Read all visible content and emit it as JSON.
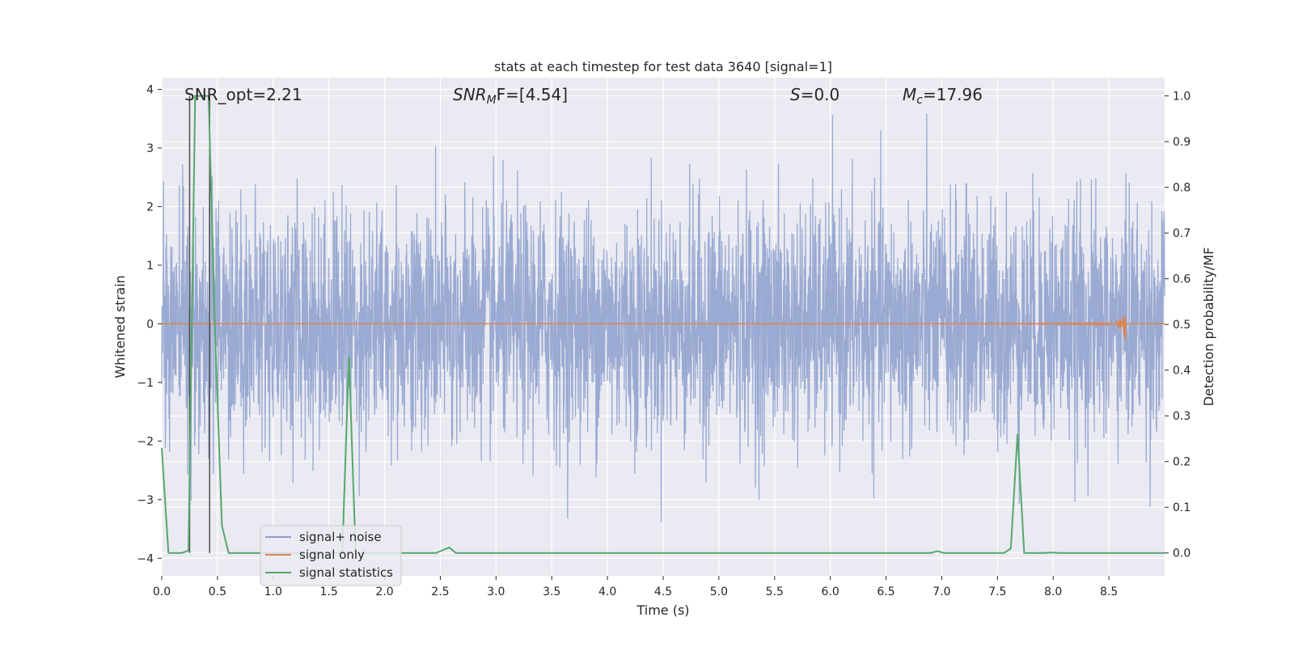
{
  "chart_data": {
    "type": "line",
    "title": "stats at each timestep for test data 3640 [signal=1]",
    "xlabel": "Time (s)",
    "ylabel": "Whitened strain",
    "y2label": "Detection probability/MF",
    "xlim": [
      0.0,
      9.0
    ],
    "ylim": [
      -4.3,
      4.2
    ],
    "y2lim": [
      -0.05,
      1.04
    ],
    "xticks": [
      "0.0",
      "0.5",
      "1.0",
      "1.5",
      "2.0",
      "2.5",
      "3.0",
      "3.5",
      "4.0",
      "4.5",
      "5.0",
      "5.5",
      "6.0",
      "6.5",
      "7.0",
      "7.5",
      "8.0",
      "8.5"
    ],
    "xtick_values": [
      0.0,
      0.5,
      1.0,
      1.5,
      2.0,
      2.5,
      3.0,
      3.5,
      4.0,
      4.5,
      5.0,
      5.5,
      6.0,
      6.5,
      7.0,
      7.5,
      8.0,
      8.5
    ],
    "yticks": [
      "−4",
      "−3",
      "−2",
      "−1",
      "0",
      "1",
      "2",
      "3",
      "4"
    ],
    "ytick_values": [
      -4,
      -3,
      -2,
      -1,
      0,
      1,
      2,
      3,
      4
    ],
    "y2ticks": [
      "0.0",
      "0.1",
      "0.2",
      "0.3",
      "0.4",
      "0.5",
      "0.6",
      "0.7",
      "0.8",
      "0.9",
      "1.0"
    ],
    "y2tick_values": [
      0.0,
      0.1,
      0.2,
      0.3,
      0.4,
      0.5,
      0.6,
      0.7,
      0.8,
      0.9,
      1.0
    ],
    "annotations": {
      "snr_opt": "SNR_opt=2.21",
      "snr_mf_sym": "SNR",
      "snr_mf_sub": "M",
      "snr_mf_rest": "F=[4.54]",
      "s_sym": "S",
      "s_rest": "=0.0",
      "mc_sym": "M",
      "mc_sub": "c",
      "mc_rest": "=17.96"
    },
    "legend": {
      "position": "lower-left",
      "entries": [
        "signal+ noise",
        "signal only",
        "signal statistics"
      ]
    },
    "colors": {
      "noise": "#8c9fcc",
      "signal": "#dd8452",
      "stats": "#55a868",
      "background": "#eaeaf2",
      "grid": "#ffffff",
      "marker_line": "#4c4c4c"
    },
    "series": [
      {
        "name": "signal+ noise",
        "description_range": [
          -3.4,
          3.8
        ],
        "time_range": [
          0.0,
          9.0
        ]
      },
      {
        "name": "signal only",
        "chirp_end_time": 8.65,
        "chirp_peak_amplitude": 0.35
      },
      {
        "name": "signal statistics",
        "x": [
          0.0,
          0.06,
          0.18,
          0.24,
          0.3,
          0.42,
          0.48,
          0.54,
          0.6,
          0.66,
          1.62,
          1.68,
          1.74,
          1.8,
          2.46,
          2.58,
          2.64,
          6.9,
          6.96,
          7.02,
          7.08,
          7.56,
          7.62,
          7.68,
          7.74,
          7.8,
          7.92,
          7.98,
          8.04,
          8.1,
          9.0
        ],
        "y": [
          0.23,
          0.0,
          0.0,
          0.005,
          1.0,
          1.0,
          0.47,
          0.06,
          0.0,
          0.0,
          0.0,
          0.43,
          0.0,
          0.0,
          0.0,
          0.012,
          0.0,
          0.0,
          0.004,
          0.0,
          0.0,
          0.0,
          0.01,
          0.26,
          0.0,
          0.0,
          0.0,
          0.001,
          0.0,
          0.0,
          0.0
        ]
      }
    ],
    "vertical_markers": [
      0.25,
      0.43
    ]
  }
}
